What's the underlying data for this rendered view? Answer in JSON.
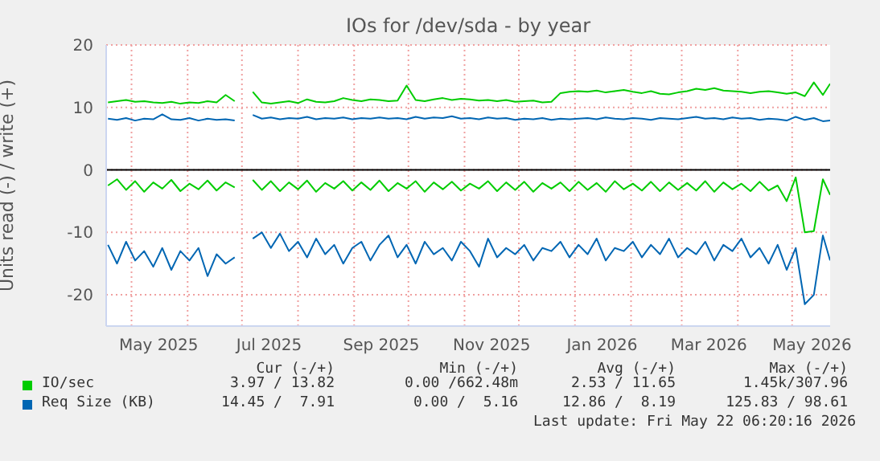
{
  "chart_data": {
    "type": "line",
    "title": "IOs for /dev/sda - by year",
    "ylabel": "Units read (-) / write (+)",
    "x": [
      "2025-04-18",
      "2025-04-23",
      "2025-04-28",
      "2025-05-03",
      "2025-05-08",
      "2025-05-13",
      "2025-05-18",
      "2025-05-23",
      "2025-05-28",
      "2025-06-02",
      "2025-06-07",
      "2025-06-12",
      "2025-06-17",
      "2025-06-22",
      "2025-06-27",
      "2025-07-02",
      "2025-07-07",
      "2025-07-12",
      "2025-07-17",
      "2025-07-22",
      "2025-07-27",
      "2025-08-01",
      "2025-08-06",
      "2025-08-11",
      "2025-08-16",
      "2025-08-21",
      "2025-08-26",
      "2025-08-31",
      "2025-09-05",
      "2025-09-10",
      "2025-09-15",
      "2025-09-20",
      "2025-09-25",
      "2025-09-30",
      "2025-10-05",
      "2025-10-10",
      "2025-10-15",
      "2025-10-20",
      "2025-10-25",
      "2025-10-30",
      "2025-11-04",
      "2025-11-09",
      "2025-11-14",
      "2025-11-19",
      "2025-11-24",
      "2025-11-29",
      "2025-12-04",
      "2025-12-09",
      "2025-12-14",
      "2025-12-19",
      "2025-12-24",
      "2025-12-29",
      "2026-01-03",
      "2026-01-08",
      "2026-01-13",
      "2026-01-18",
      "2026-01-23",
      "2026-01-28",
      "2026-02-02",
      "2026-02-07",
      "2026-02-12",
      "2026-02-17",
      "2026-02-22",
      "2026-02-27",
      "2026-03-04",
      "2026-03-09",
      "2026-03-14",
      "2026-03-19",
      "2026-03-24",
      "2026-03-29",
      "2026-04-03",
      "2026-04-08",
      "2026-04-13",
      "2026-04-18",
      "2026-04-23",
      "2026-04-28",
      "2026-05-03",
      "2026-05-08",
      "2026-05-13",
      "2026-05-18",
      "2026-05-22"
    ],
    "series": [
      {
        "name": "IO/sec",
        "color": "#00cc00",
        "values": [
          10.8,
          11,
          11.2,
          10.9,
          11,
          10.8,
          10.7,
          10.9,
          10.6,
          10.8,
          10.7,
          11,
          10.8,
          12,
          11,
          null,
          12.5,
          10.8,
          10.6,
          10.8,
          11,
          10.7,
          11.3,
          10.9,
          10.8,
          11,
          11.5,
          11.2,
          11,
          11.3,
          11.2,
          11,
          11.1,
          13.5,
          11.2,
          11,
          11.3,
          11.5,
          11.2,
          11.4,
          11.3,
          11.1,
          11.2,
          11,
          11.2,
          10.9,
          11,
          11.1,
          10.8,
          10.9,
          12.3,
          12.5,
          12.6,
          12.5,
          12.7,
          12.4,
          12.6,
          12.8,
          12.5,
          12.3,
          12.6,
          12.2,
          12.1,
          12.4,
          12.6,
          13,
          12.8,
          13.1,
          12.7,
          12.6,
          12.5,
          12.3,
          12.5,
          12.6,
          12.4,
          12.2,
          12.4,
          11.8,
          14,
          12,
          13.8
        ]
      },
      {
        "color": "#00cc00",
        "values": [
          -2.5,
          -1.5,
          -3.2,
          -1.8,
          -3.5,
          -2,
          -3,
          -1.6,
          -3.4,
          -2.2,
          -3.1,
          -1.7,
          -3.3,
          -2,
          -2.8,
          null,
          -1.6,
          -3.2,
          -1.8,
          -3.4,
          -2,
          -3.1,
          -1.7,
          -3.5,
          -2.1,
          -3,
          -1.8,
          -3.3,
          -2,
          -3.2,
          -1.7,
          -3.4,
          -2.1,
          -3,
          -1.8,
          -3.5,
          -2,
          -3.1,
          -1.9,
          -3.3,
          -2.2,
          -3,
          -1.8,
          -3.4,
          -2,
          -3.2,
          -1.9,
          -3.5,
          -2.1,
          -3,
          -2,
          -3.4,
          -1.9,
          -3.2,
          -2.1,
          -3.5,
          -1.8,
          -3.1,
          -2.2,
          -3.3,
          -1.9,
          -3.4,
          -2,
          -3.2,
          -2.1,
          -3.3,
          -1.8,
          -3.5,
          -2,
          -3.1,
          -2.2,
          -3.4,
          -1.9,
          -3.3,
          -2.5,
          -5,
          -1.2,
          -10,
          -9.8,
          -1.5,
          -4
        ]
      },
      {
        "name": "Req Size (KB)",
        "color": "#0066b3",
        "values": [
          8.2,
          8,
          8.3,
          7.9,
          8.2,
          8.1,
          8.9,
          8.1,
          8,
          8.3,
          7.9,
          8.2,
          8,
          8.1,
          7.9,
          null,
          8.8,
          8.2,
          8.4,
          8.1,
          8.3,
          8.2,
          8.5,
          8.1,
          8.3,
          8.2,
          8.4,
          8.1,
          8.3,
          8.2,
          8.4,
          8.2,
          8.3,
          8.1,
          8.5,
          8.2,
          8.4,
          8.3,
          8.6,
          8.2,
          8.3,
          8.1,
          8.4,
          8.2,
          8.3,
          8,
          8.2,
          8.1,
          8.3,
          8,
          8.2,
          8.1,
          8.2,
          8.3,
          8.1,
          8.4,
          8.2,
          8.1,
          8.3,
          8.2,
          8,
          8.3,
          8.2,
          8.1,
          8.3,
          8.5,
          8.2,
          8.3,
          8.1,
          8.4,
          8.2,
          8.3,
          8,
          8.2,
          8.1,
          7.9,
          8.5,
          8,
          8.3,
          7.8,
          7.9
        ]
      },
      {
        "color": "#0066b3",
        "values": [
          -12,
          -15,
          -11.5,
          -14.5,
          -13,
          -15.5,
          -12.5,
          -16,
          -13,
          -14.5,
          -12.5,
          -17,
          -13.5,
          -15,
          -14,
          null,
          -11,
          -10,
          -12.5,
          -10.2,
          -13,
          -11.5,
          -14,
          -11,
          -13.5,
          -12,
          -15,
          -12.5,
          -11.5,
          -14.5,
          -12,
          -10.5,
          -14,
          -12,
          -15,
          -11.5,
          -13.5,
          -12.5,
          -14.5,
          -11.5,
          -13,
          -15.5,
          -11,
          -14,
          -12.5,
          -13.5,
          -12,
          -14.5,
          -12.5,
          -13,
          -11.5,
          -14,
          -12,
          -13.5,
          -11,
          -14.5,
          -12.5,
          -13,
          -11.5,
          -14,
          -12,
          -13.5,
          -11,
          -14,
          -12.5,
          -13.5,
          -11.5,
          -14.5,
          -12,
          -13,
          -11,
          -14,
          -12.5,
          -15,
          -12,
          -16,
          -12.5,
          -21.5,
          -20,
          -10.5,
          -14.5
        ]
      }
    ],
    "xlim": [
      "2025-04-17",
      "2026-05-22"
    ],
    "xticks": [
      {
        "value": "2025-05-01",
        "label": null
      },
      {
        "value": "2025-06-01",
        "label": null
      },
      {
        "value": "2025-07-01",
        "label": null
      },
      {
        "value": "2025-08-01",
        "label": null
      },
      {
        "value": "2025-09-01",
        "label": null
      },
      {
        "value": "2025-10-01",
        "label": null
      },
      {
        "value": "2025-11-01",
        "label": null
      },
      {
        "value": "2025-12-01",
        "label": null
      },
      {
        "value": "2026-01-01",
        "label": null
      },
      {
        "value": "2026-02-01",
        "label": null
      },
      {
        "value": "2026-03-01",
        "label": null
      },
      {
        "value": "2026-04-01",
        "label": null
      },
      {
        "value": "2026-05-01",
        "label": null
      },
      {
        "value": "2025-05-16",
        "label": "May 2025"
      },
      {
        "value": "2025-07-16",
        "label": "Jul 2025"
      },
      {
        "value": "2025-09-16",
        "label": "Sep 2025"
      },
      {
        "value": "2025-11-16",
        "label": "Nov 2025"
      },
      {
        "value": "2026-01-16",
        "label": "Jan 2026"
      },
      {
        "value": "2026-03-16",
        "label": "Mar 2026"
      },
      {
        "value": "2026-05-12",
        "label": "May 2026"
      }
    ],
    "ylim": [
      -25,
      20
    ],
    "yticks": [
      -20,
      -10,
      0,
      10,
      20
    ],
    "ref_lines": [
      {
        "axis": "y",
        "value": 0,
        "color": "#000000"
      }
    ],
    "grid": true,
    "legend": "bottom",
    "marker": "none",
    "line_style": "solid",
    "annotations": [
      "Cur (-/+)",
      "Min (-/+)",
      "Avg (-/+)",
      "Max (-/+)",
      "3.97 / 13.82",
      "0.00 /662.48m",
      "2.53 / 11.65",
      "1.45k/307.96",
      "14.45 /  7.91",
      "0.00 /  5.16",
      "12.86 /  8.19",
      "125.83 / 98.61",
      "Last update: Fri May 22 06:20:16 2026"
    ]
  }
}
